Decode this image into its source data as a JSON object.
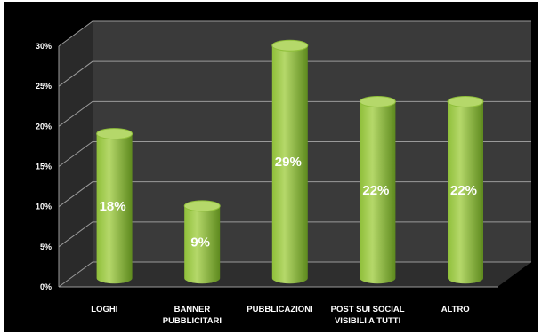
{
  "chart_data": {
    "type": "bar",
    "categories": [
      "LOGHI",
      "BANNER PUBBLICITARI",
      "PUBBLICAZIONI",
      "POST SUI SOCIAL VISIBILI A TUTTI",
      "ALTRO"
    ],
    "category_lines": [
      [
        "LOGHI"
      ],
      [
        "BANNER",
        "PUBBLICITARI"
      ],
      [
        "PUBBLICAZIONI"
      ],
      [
        "POST SUI SOCIAL",
        "VISIBILI A TUTTI"
      ],
      [
        "ALTRO"
      ]
    ],
    "values": [
      18,
      9,
      29,
      22,
      22
    ],
    "data_labels": [
      "18%",
      "9%",
      "29%",
      "22%",
      "22%"
    ],
    "yticks": [
      0,
      5,
      10,
      15,
      20,
      25,
      30
    ],
    "ytick_labels": [
      "0%",
      "5%",
      "10%",
      "15%",
      "20%",
      "25%",
      "30%"
    ],
    "ylim": [
      0,
      30
    ],
    "grid": true,
    "style": "3d-cylinder",
    "colors": {
      "frame": "#000000",
      "wall": "#3a3a3a",
      "floor": "#2e2e2e",
      "grid": "#9a9a9a",
      "bar_light": "#b5d86a",
      "bar_mid": "#8fbf3a",
      "bar_dark": "#5e8a1e",
      "text": "#ffffff"
    }
  }
}
